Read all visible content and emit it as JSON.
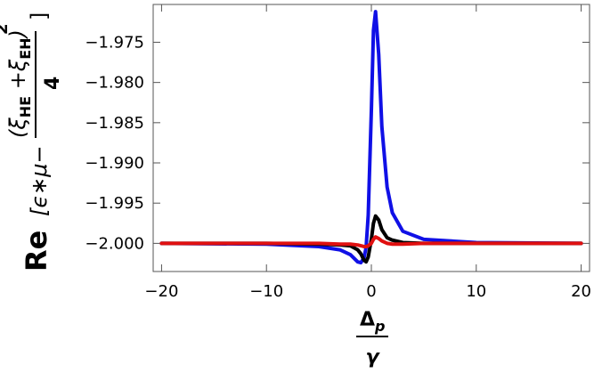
{
  "chart_data": {
    "type": "line",
    "x_label": {
      "numerator": [
        "Δ",
        "p"
      ],
      "denominator": "γ"
    },
    "y_label": {
      "prefix": "Re",
      "bracket": "[ϵ∗μ−",
      "numerator": [
        "(",
        "ξ",
        "HE",
        " +",
        "ξ",
        "EH",
        ")"
      ],
      "exponent": "2",
      "denominator": "4",
      "close": "]"
    },
    "x": [
      -20,
      -10,
      -5,
      -3,
      -2,
      -1.3,
      -1,
      -0.7,
      -0.5,
      -0.3,
      0,
      0.2,
      0.4,
      0.7,
      1,
      1.5,
      2,
      3,
      5,
      10,
      20
    ],
    "series": [
      {
        "color": "#1010e6",
        "values": [
          -2.0,
          -2.0001,
          -2.0004,
          -2.0008,
          -2.0014,
          -2.0023,
          -2.0024,
          -2.0018,
          -2.0005,
          -1.9965,
          -1.9835,
          -1.9735,
          -1.9712,
          -1.9765,
          -1.9855,
          -1.993,
          -1.9962,
          -1.9985,
          -1.9995,
          -1.9999,
          -2.0
        ]
      },
      {
        "color": "#000000",
        "values": [
          -2.0,
          -2.0,
          -2.0001,
          -2.0002,
          -2.0003,
          -2.0008,
          -2.0013,
          -2.0021,
          -2.0023,
          -2.0017,
          -1.9995,
          -1.9975,
          -1.9966,
          -1.9971,
          -1.9983,
          -1.9993,
          -1.9996,
          -1.9999,
          -2.0,
          -2.0,
          -2.0
        ]
      },
      {
        "color": "#e01010",
        "values": [
          -2.0,
          -2.0,
          -2.0,
          -2.0001,
          -2.0001,
          -2.0002,
          -2.0003,
          -2.0004,
          -2.0004,
          -2.0003,
          -2.0,
          -1.9995,
          -1.9992,
          -1.9994,
          -1.9997,
          -2.0,
          -2.0001,
          -2.0001,
          -2.0,
          -2.0,
          -2.0
        ]
      }
    ],
    "xlim": [
      -20.8,
      20.8
    ],
    "ylim": [
      -2.0035,
      -1.9703
    ],
    "xticks": [
      {
        "value": -20,
        "label": "−20"
      },
      {
        "value": -10,
        "label": "−10"
      },
      0,
      10,
      20
    ],
    "yticks": [
      {
        "value": -1.975,
        "label": "−1.975"
      },
      {
        "value": -1.98,
        "label": "−1.980"
      },
      {
        "value": -1.985,
        "label": "−1.985"
      },
      {
        "value": -1.99,
        "label": "−1.990"
      },
      {
        "value": -1.995,
        "label": "−1.995"
      },
      {
        "value": -2.0,
        "label": "−2.000"
      }
    ],
    "grid": false
  }
}
